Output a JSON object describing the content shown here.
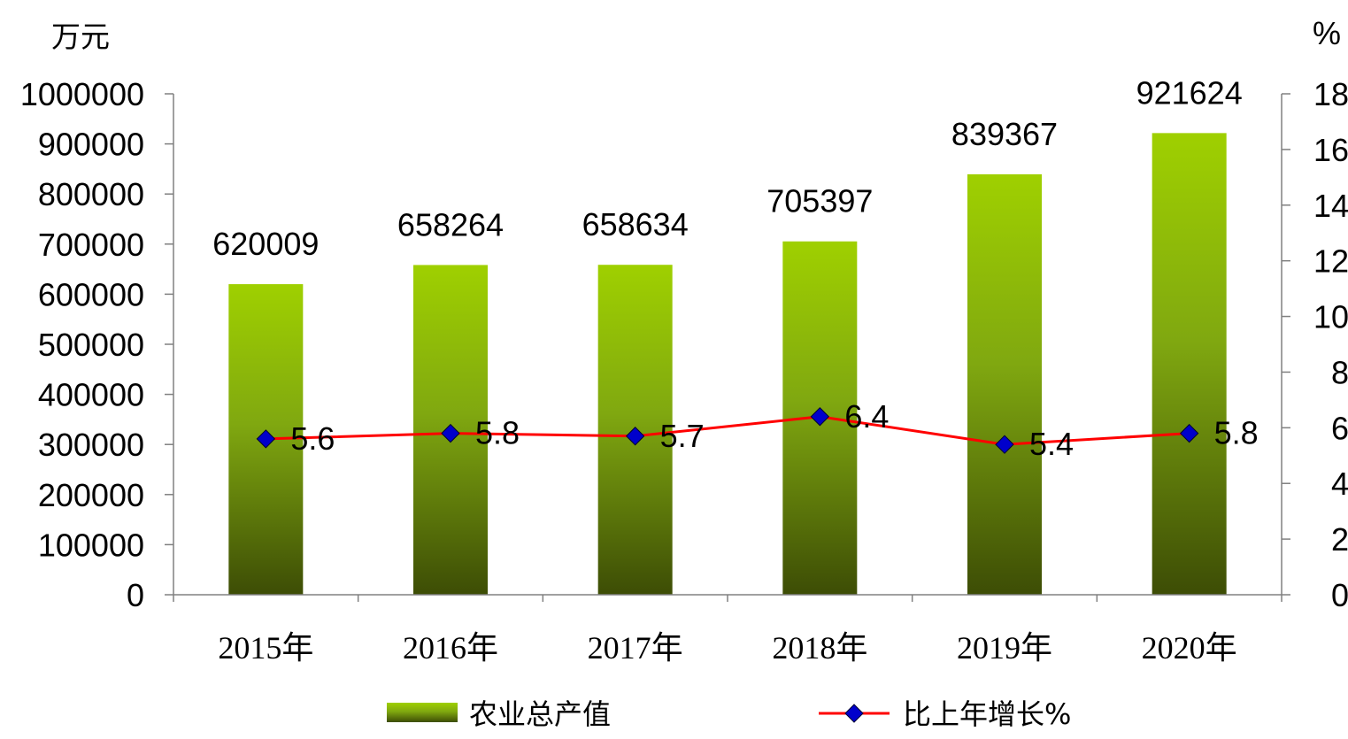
{
  "chart_data": {
    "type": "bar",
    "categories": [
      "2015年",
      "2016年",
      "2017年",
      "2018年",
      "2019年",
      "2020年"
    ],
    "series": [
      {
        "name": "农业总产值",
        "type": "bar",
        "axis": "left",
        "values": [
          620009,
          658264,
          658634,
          705397,
          839367,
          921624
        ],
        "labels": [
          "620009",
          "658264",
          "658634",
          "705397",
          "839367",
          "921624"
        ],
        "color": "#8fbf00"
      },
      {
        "name": "比上年增长%",
        "type": "line",
        "axis": "right",
        "values": [
          5.6,
          5.8,
          5.7,
          6.4,
          5.4,
          5.8
        ],
        "labels": [
          "5.6",
          "5.8",
          "5.7",
          "6.4",
          "5.4",
          "5.8"
        ],
        "color": "#ff0000",
        "marker_color": "#0000cc"
      }
    ],
    "y_left": {
      "unit": "万元",
      "ylim": [
        0,
        1000000
      ],
      "ticks": [
        "0",
        "100000",
        "200000",
        "300000",
        "400000",
        "500000",
        "600000",
        "700000",
        "800000",
        "900000",
        "1000000"
      ]
    },
    "y_right": {
      "unit": "%",
      "ylim": [
        0,
        18
      ],
      "ticks": [
        "0",
        "2",
        "4",
        "6",
        "8",
        "10",
        "12",
        "14",
        "16",
        "18"
      ]
    },
    "grid": false,
    "legend": "bottom"
  }
}
